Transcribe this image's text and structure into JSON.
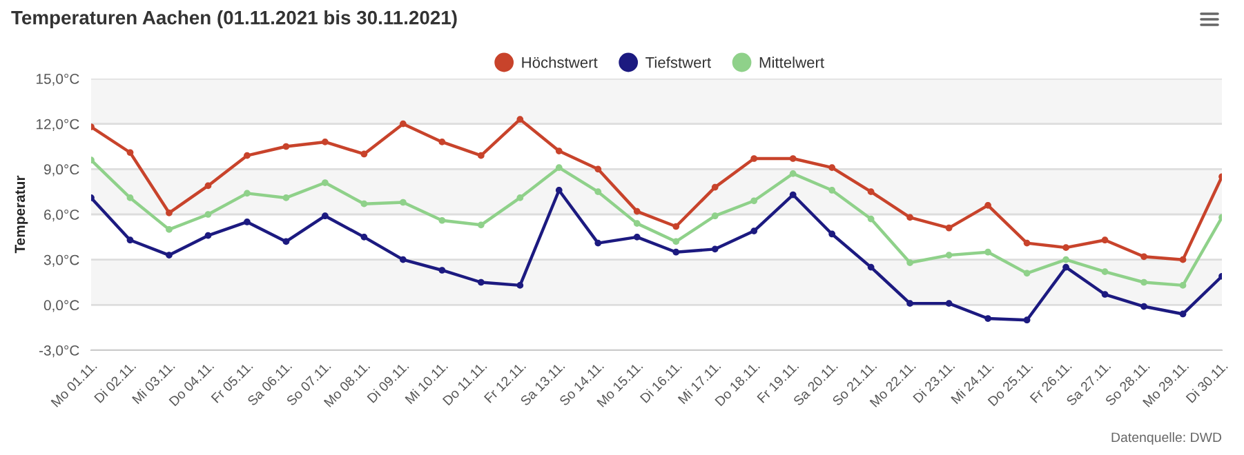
{
  "chart_data": {
    "type": "line",
    "title": "Temperaturen Aachen (01.11.2021 bis 30.11.2021)",
    "ylabel": "Temperatur",
    "categories": [
      "Mo 01.11.",
      "Di 02.11.",
      "Mi 03.11.",
      "Do 04.11.",
      "Fr 05.11.",
      "Sa 06.11.",
      "So 07.11.",
      "Mo 08.11.",
      "Di 09.11.",
      "Mi 10.11.",
      "Do 11.11.",
      "Fr 12.11.",
      "Sa 13.11.",
      "So 14.11.",
      "Mo 15.11.",
      "Di 16.11.",
      "Mi 17.11.",
      "Do 18.11.",
      "Fr 19.11.",
      "Sa 20.11.",
      "So 21.11.",
      "Mo 22.11.",
      "Di 23.11.",
      "Mi 24.11.",
      "Do 25.11.",
      "Fr 26.11.",
      "Sa 27.11.",
      "So 28.11.",
      "Mo 29.11.",
      "Di 30.11."
    ],
    "series": [
      {
        "name": "Höchstwert",
        "color": "#c8432b",
        "values": [
          11.8,
          10.1,
          6.1,
          7.9,
          9.9,
          10.5,
          10.8,
          10.0,
          12.0,
          10.8,
          9.9,
          12.3,
          10.2,
          9.0,
          6.2,
          5.2,
          7.8,
          9.7,
          9.7,
          9.1,
          7.5,
          5.8,
          5.1,
          6.6,
          4.1,
          3.8,
          4.3,
          3.2,
          3.0,
          8.5
        ]
      },
      {
        "name": "Tiefstwert",
        "color": "#1c1a80",
        "values": [
          7.1,
          4.3,
          3.3,
          4.6,
          5.5,
          4.2,
          5.9,
          4.5,
          3.0,
          2.3,
          1.5,
          1.3,
          7.6,
          4.1,
          4.5,
          3.5,
          3.7,
          4.9,
          7.3,
          4.7,
          2.5,
          0.1,
          0.1,
          -0.9,
          -1.0,
          2.5,
          0.7,
          -0.1,
          -0.6,
          1.9
        ]
      },
      {
        "name": "Mittelwert",
        "color": "#8fd18a",
        "values": [
          9.6,
          7.1,
          5.0,
          6.0,
          7.4,
          7.1,
          8.1,
          6.7,
          6.8,
          5.6,
          5.3,
          7.1,
          9.1,
          7.5,
          5.4,
          4.2,
          5.9,
          6.9,
          8.7,
          7.6,
          5.7,
          2.8,
          3.3,
          3.5,
          2.1,
          3.0,
          2.2,
          1.5,
          1.3,
          5.8
        ]
      }
    ],
    "ylim": [
      -3,
      15
    ],
    "yticks": [
      {
        "value": -3,
        "label": "-3,0°C"
      },
      {
        "value": 0,
        "label": "0,0°C"
      },
      {
        "value": 3,
        "label": "3,0°C"
      },
      {
        "value": 6,
        "label": "6,0°C"
      },
      {
        "value": 9,
        "label": "9,0°C"
      },
      {
        "value": 12,
        "label": "12,0°C"
      },
      {
        "value": 15,
        "label": "15,0°C"
      }
    ],
    "bands": [
      {
        "axis": "y",
        "from": 12,
        "to": 15,
        "color": "#f5f5f5"
      },
      {
        "axis": "y",
        "from": 6,
        "to": 9,
        "color": "#f5f5f5"
      },
      {
        "axis": "y",
        "from": 0,
        "to": 3,
        "color": "#f5f5f5"
      }
    ],
    "grid": "y",
    "legend": "top",
    "marker": "circle",
    "line_style": "solid",
    "annotations": [
      "Datenquelle: DWD"
    ]
  }
}
